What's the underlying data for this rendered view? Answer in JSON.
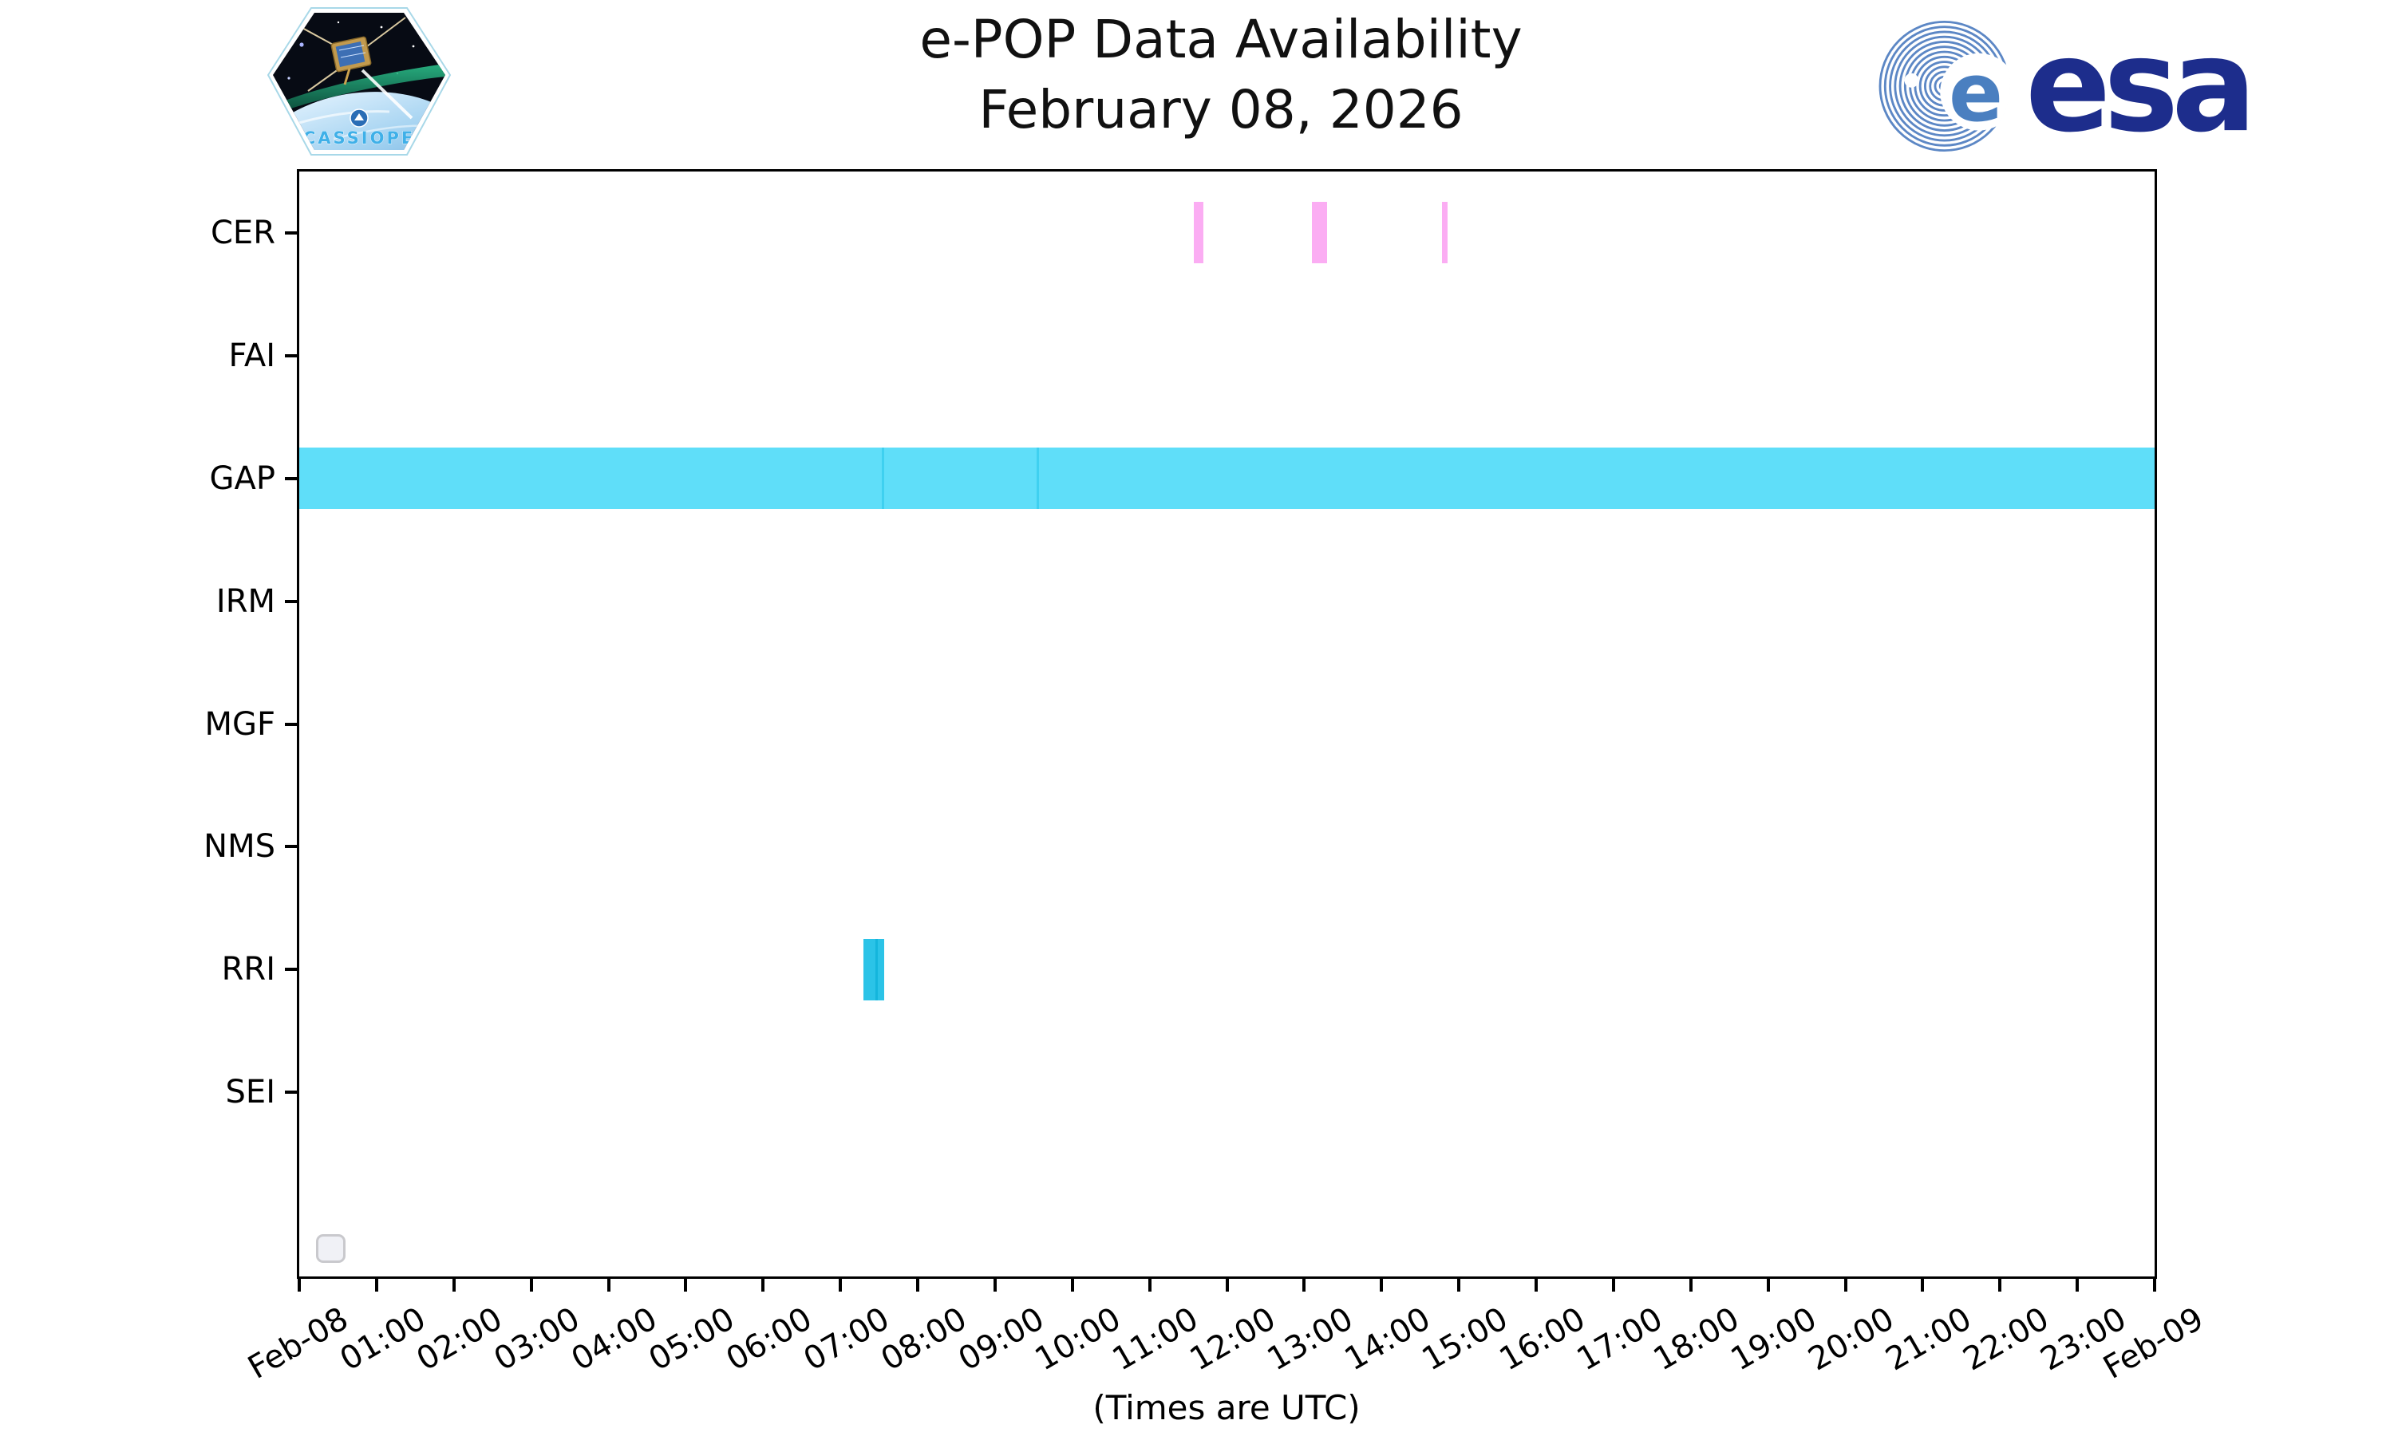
{
  "header": {
    "cassiope_patch_label": "CASSIOPE",
    "esa_wordmark": "esa"
  },
  "legend": {
    "empty_box": true
  },
  "colors": {
    "gap_band": "#5fdef9",
    "gap_band_divider": "#3fd0f0",
    "rri_bar": "#2bc3e7",
    "rri_bar_divider": "#14b5dc",
    "cer_bar": "#fbadf3",
    "esa_navy": "#1d2d8c",
    "esa_globe_blue": "#5c87c5",
    "cassiope_text_blue": "#3fb0e8",
    "axis_black": "#000000"
  },
  "chart_data": {
    "type": "bar",
    "variant": "horizontal-availability-timeline",
    "title": "e-POP Data Availability",
    "subtitle": "February 08, 2026",
    "xlabel": "(Times are UTC)",
    "grid": false,
    "x_axis": {
      "hours": [
        0,
        24
      ],
      "tick_interval_hours": 1,
      "tick_labels": [
        "Feb-08",
        "01:00",
        "02:00",
        "03:00",
        "04:00",
        "05:00",
        "06:00",
        "07:00",
        "08:00",
        "09:00",
        "10:00",
        "11:00",
        "12:00",
        "13:00",
        "14:00",
        "15:00",
        "16:00",
        "17:00",
        "18:00",
        "19:00",
        "20:00",
        "21:00",
        "22:00",
        "23:00",
        "Feb-09"
      ],
      "tick_label_rotation_deg": -30
    },
    "categories": [
      "CER",
      "FAI",
      "GAP",
      "IRM",
      "MGF",
      "NMS",
      "RRI",
      "SEI"
    ],
    "series": [
      {
        "category": "CER",
        "color": "#fbadf3",
        "divider_color": null,
        "intervals": [
          [
            "11:34",
            "11:42"
          ],
          [
            "13:06",
            "13:18"
          ],
          [
            "14:47",
            "14:51"
          ]
        ]
      },
      {
        "category": "FAI",
        "color": null,
        "divider_color": null,
        "intervals": []
      },
      {
        "category": "GAP",
        "color": "#5fdef9",
        "divider_color": "#3fd0f0",
        "intervals": [
          [
            "00:00",
            "07:33"
          ],
          [
            "07:33",
            "09:33"
          ],
          [
            "09:33",
            "24:00"
          ]
        ]
      },
      {
        "category": "IRM",
        "color": null,
        "divider_color": null,
        "intervals": []
      },
      {
        "category": "MGF",
        "color": null,
        "divider_color": null,
        "intervals": []
      },
      {
        "category": "NMS",
        "color": null,
        "divider_color": null,
        "intervals": []
      },
      {
        "category": "RRI",
        "color": "#2bc3e7",
        "divider_color": "#14b5dc",
        "intervals": [
          [
            "07:18",
            "07:28"
          ],
          [
            "07:28",
            "07:34"
          ]
        ]
      },
      {
        "category": "SEI",
        "color": null,
        "divider_color": null,
        "intervals": []
      }
    ],
    "legend_entries": []
  }
}
